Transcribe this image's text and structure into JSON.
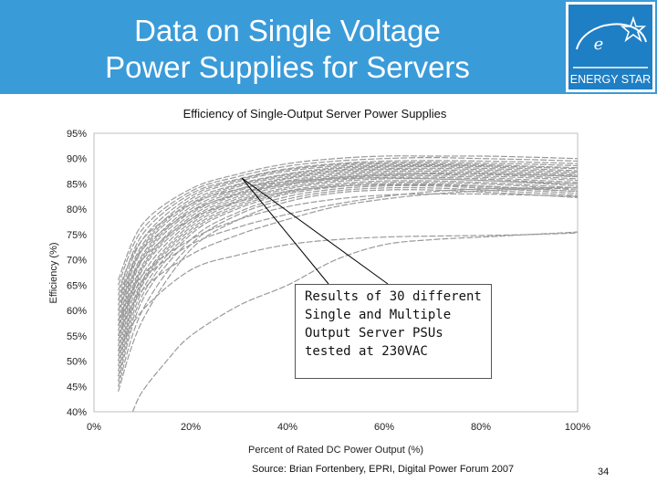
{
  "slide": {
    "title_line1": "Data on Single Voltage",
    "title_line2": "Power Supplies for Servers",
    "logo_text": "ENERGY STAR",
    "source": "Source: Brian Fortenbery, EPRI, Digital Power Forum 2007",
    "page_number": "34",
    "colors": {
      "header": "#3a9bd9",
      "curve": "#9a9a9a",
      "logo": "#1f7fc4"
    }
  },
  "callout": {
    "lines": [
      "Results of 30 different",
      "Single and Multiple",
      "Output Server PSUs",
      "tested at 230VAC"
    ]
  },
  "chart_data": {
    "type": "line",
    "title": "Efficiency of Single-Output Server Power Supplies",
    "xlabel": "Percent of Rated DC Power Output (%)",
    "ylabel": "Efficiency (%)",
    "xlim": [
      0,
      100
    ],
    "ylim": [
      40,
      95
    ],
    "x_ticks": [
      0,
      20,
      40,
      60,
      80,
      100
    ],
    "y_ticks": [
      40,
      45,
      50,
      55,
      60,
      65,
      70,
      75,
      80,
      85,
      90,
      95
    ],
    "x_tick_labels": [
      "0%",
      "20%",
      "40%",
      "60%",
      "80%",
      "100%"
    ],
    "y_tick_labels": [
      "40%",
      "45%",
      "50%",
      "55%",
      "60%",
      "65%",
      "70%",
      "75%",
      "80%",
      "85%",
      "90%",
      "95%"
    ],
    "grid": false,
    "legend": "none",
    "series": [
      {
        "x": [
          5,
          10,
          20,
          30,
          40,
          50,
          60,
          70,
          80,
          90,
          100
        ],
        "values": [
          66,
          77,
          84,
          87,
          89,
          90,
          90.5,
          90.5,
          90.5,
          90.3,
          90
        ]
      },
      {
        "x": [
          5,
          10,
          20,
          30,
          40,
          50,
          60,
          70,
          80,
          90,
          100
        ],
        "values": [
          65,
          76,
          83.5,
          86.5,
          88.5,
          89.5,
          90,
          90.2,
          90,
          89.8,
          89.5
        ]
      },
      {
        "x": [
          5,
          10,
          20,
          30,
          40,
          50,
          60,
          70,
          80,
          90,
          100
        ],
        "values": [
          63,
          75,
          83,
          86,
          88,
          89,
          89.5,
          89.6,
          89.5,
          89.3,
          89
        ]
      },
      {
        "x": [
          5,
          10,
          20,
          30,
          40,
          50,
          60,
          70,
          80,
          90,
          100
        ],
        "values": [
          62,
          74,
          82.5,
          85.8,
          87.8,
          88.8,
          89.2,
          89.3,
          89.1,
          88.9,
          88.6
        ]
      },
      {
        "x": [
          5,
          10,
          20,
          30,
          40,
          50,
          60,
          70,
          80,
          90,
          100
        ],
        "values": [
          61,
          73,
          82,
          85.5,
          87.5,
          88.5,
          89,
          89,
          88.8,
          88.5,
          88.2
        ]
      },
      {
        "x": [
          5,
          10,
          20,
          30,
          40,
          50,
          60,
          70,
          80,
          90,
          100
        ],
        "values": [
          60,
          72.5,
          81.5,
          85,
          87,
          88.2,
          88.7,
          88.8,
          88.6,
          88.3,
          88
        ]
      },
      {
        "x": [
          5,
          10,
          20,
          30,
          40,
          50,
          60,
          70,
          80,
          90,
          100
        ],
        "values": [
          59,
          72,
          81,
          84.8,
          86.8,
          88,
          88.5,
          88.6,
          88.4,
          88,
          87.6
        ]
      },
      {
        "x": [
          5,
          10,
          20,
          30,
          40,
          50,
          60,
          70,
          80,
          90,
          100
        ],
        "values": [
          58,
          71,
          80.5,
          84.5,
          86.5,
          87.7,
          88.3,
          88.4,
          88.1,
          87.7,
          87.3
        ]
      },
      {
        "x": [
          5,
          10,
          20,
          30,
          40,
          50,
          60,
          70,
          80,
          90,
          100
        ],
        "values": [
          57,
          70.5,
          80,
          84,
          86.2,
          87.5,
          88,
          88.1,
          87.8,
          87.4,
          87
        ]
      },
      {
        "x": [
          5,
          10,
          20,
          30,
          40,
          50,
          60,
          70,
          80,
          90,
          100
        ],
        "values": [
          56,
          70,
          79.5,
          83.7,
          86,
          87.2,
          87.8,
          87.8,
          87.5,
          87.1,
          86.7
        ]
      },
      {
        "x": [
          5,
          10,
          20,
          30,
          40,
          50,
          60,
          70,
          80,
          90,
          100
        ],
        "values": [
          55,
          69,
          79,
          83.3,
          85.6,
          86.9,
          87.5,
          87.5,
          87.2,
          86.8,
          86.4
        ]
      },
      {
        "x": [
          5,
          10,
          20,
          30,
          40,
          50,
          60,
          70,
          80,
          90,
          100
        ],
        "values": [
          54,
          68.5,
          78.5,
          83,
          85.3,
          86.6,
          87.2,
          87.2,
          86.9,
          86.5,
          86
        ]
      },
      {
        "x": [
          5,
          10,
          20,
          30,
          40,
          50,
          60,
          70,
          80,
          90,
          100
        ],
        "values": [
          53,
          68,
          78,
          82.6,
          85,
          86.3,
          86.9,
          86.9,
          86.6,
          86.2,
          85.7
        ]
      },
      {
        "x": [
          5,
          10,
          20,
          30,
          40,
          50,
          60,
          70,
          80,
          90,
          100
        ],
        "values": [
          52,
          67,
          77.5,
          82.2,
          84.7,
          86,
          86.6,
          86.6,
          86.3,
          85.8,
          85.3
        ]
      },
      {
        "x": [
          5,
          10,
          20,
          30,
          40,
          50,
          60,
          70,
          80,
          90,
          100
        ],
        "values": [
          51,
          66,
          77,
          81.8,
          84.3,
          85.7,
          86.3,
          86.3,
          86,
          85.5,
          85
        ]
      },
      {
        "x": [
          5,
          10,
          20,
          30,
          40,
          50,
          60,
          70,
          80,
          90,
          100
        ],
        "values": [
          50,
          65.5,
          76.5,
          81.5,
          84,
          85.4,
          86,
          86,
          85.7,
          85.2,
          84.6
        ]
      },
      {
        "x": [
          5,
          10,
          20,
          30,
          40,
          50,
          60,
          70,
          80,
          90,
          100
        ],
        "values": [
          49,
          65,
          76,
          81,
          83.6,
          85,
          85.6,
          85.6,
          85.3,
          84.8,
          84.2
        ]
      },
      {
        "x": [
          5,
          10,
          20,
          30,
          40,
          50,
          60,
          70,
          80,
          90,
          100
        ],
        "values": [
          48,
          64,
          75.5,
          80.6,
          83.3,
          84.7,
          85.3,
          85.3,
          85,
          84.5,
          83.8
        ]
      },
      {
        "x": [
          5,
          10,
          20,
          30,
          40,
          50,
          60,
          70,
          80,
          90,
          100
        ],
        "values": [
          47,
          63,
          75,
          80.2,
          83,
          84.4,
          85,
          85,
          84.6,
          84.1,
          83.5
        ]
      },
      {
        "x": [
          5,
          10,
          20,
          30,
          40,
          50,
          60,
          70,
          80,
          90,
          100
        ],
        "values": [
          46,
          62,
          74,
          79.5,
          82.5,
          84,
          84.6,
          84.6,
          84.2,
          83.7,
          83.1
        ]
      },
      {
        "x": [
          5,
          10,
          20,
          30,
          40,
          50,
          60,
          70,
          80,
          90,
          100
        ],
        "values": [
          45,
          60,
          73,
          79,
          82,
          83.6,
          84.2,
          84.2,
          83.8,
          83.3,
          82.7
        ]
      },
      {
        "x": [
          5,
          10,
          20,
          30,
          40,
          50,
          60,
          70,
          80,
          90,
          100
        ],
        "values": [
          44,
          58,
          72,
          78,
          81.5,
          83.2,
          83.8,
          83.8,
          83.4,
          82.9,
          82.3
        ]
      },
      {
        "x": [
          5,
          10,
          20,
          30,
          40,
          50,
          60,
          70,
          80,
          90,
          100
        ],
        "values": [
          60,
          70,
          78,
          81.5,
          83.5,
          84.5,
          84.8,
          84.8,
          84.5,
          84,
          83.5
        ]
      },
      {
        "x": [
          5,
          10,
          20,
          30,
          40,
          50,
          60,
          70,
          80,
          90,
          100
        ],
        "values": [
          58,
          67,
          74,
          78,
          80.5,
          82,
          82.8,
          83,
          83,
          82.8,
          82.5
        ]
      },
      {
        "x": [
          5,
          10,
          20,
          30,
          40,
          50,
          60,
          70,
          80,
          90,
          100
        ],
        "values": [
          64,
          74,
          81,
          84,
          85.5,
          86,
          86.2,
          86,
          85.7,
          85.3,
          85
        ]
      },
      {
        "x": [
          5,
          10,
          20,
          30,
          40,
          50,
          60,
          70,
          80,
          90,
          100
        ],
        "values": [
          57,
          66,
          73,
          76.5,
          79,
          81,
          82.5,
          83.5,
          84,
          84.2,
          84.3
        ]
      },
      {
        "x": [
          5,
          10,
          20,
          30,
          40,
          50,
          60,
          70,
          80,
          90,
          100
        ],
        "values": [
          55,
          64,
          71,
          75,
          78,
          80.5,
          82,
          83,
          83.6,
          84,
          84.2
        ]
      },
      {
        "x": [
          5,
          10,
          20,
          30,
          40,
          50,
          60,
          70,
          80,
          90,
          100
        ],
        "values": [
          62,
          72,
          79.5,
          83,
          85,
          86.2,
          86.8,
          87,
          87,
          86.8,
          86.5
        ]
      },
      {
        "x": [
          5,
          10,
          20,
          30,
          40,
          50,
          60,
          70,
          80,
          90,
          100
        ],
        "values": [
          52,
          60,
          68,
          71,
          73,
          74,
          74.5,
          74.7,
          74.8,
          75,
          75.3
        ]
      },
      {
        "x": [
          8,
          10,
          15,
          20,
          30,
          40,
          50,
          60,
          70,
          80,
          90,
          100
        ],
        "values": [
          40,
          44,
          50,
          55,
          61,
          65,
          70,
          73,
          74,
          74.5,
          75,
          75.5
        ]
      }
    ]
  }
}
